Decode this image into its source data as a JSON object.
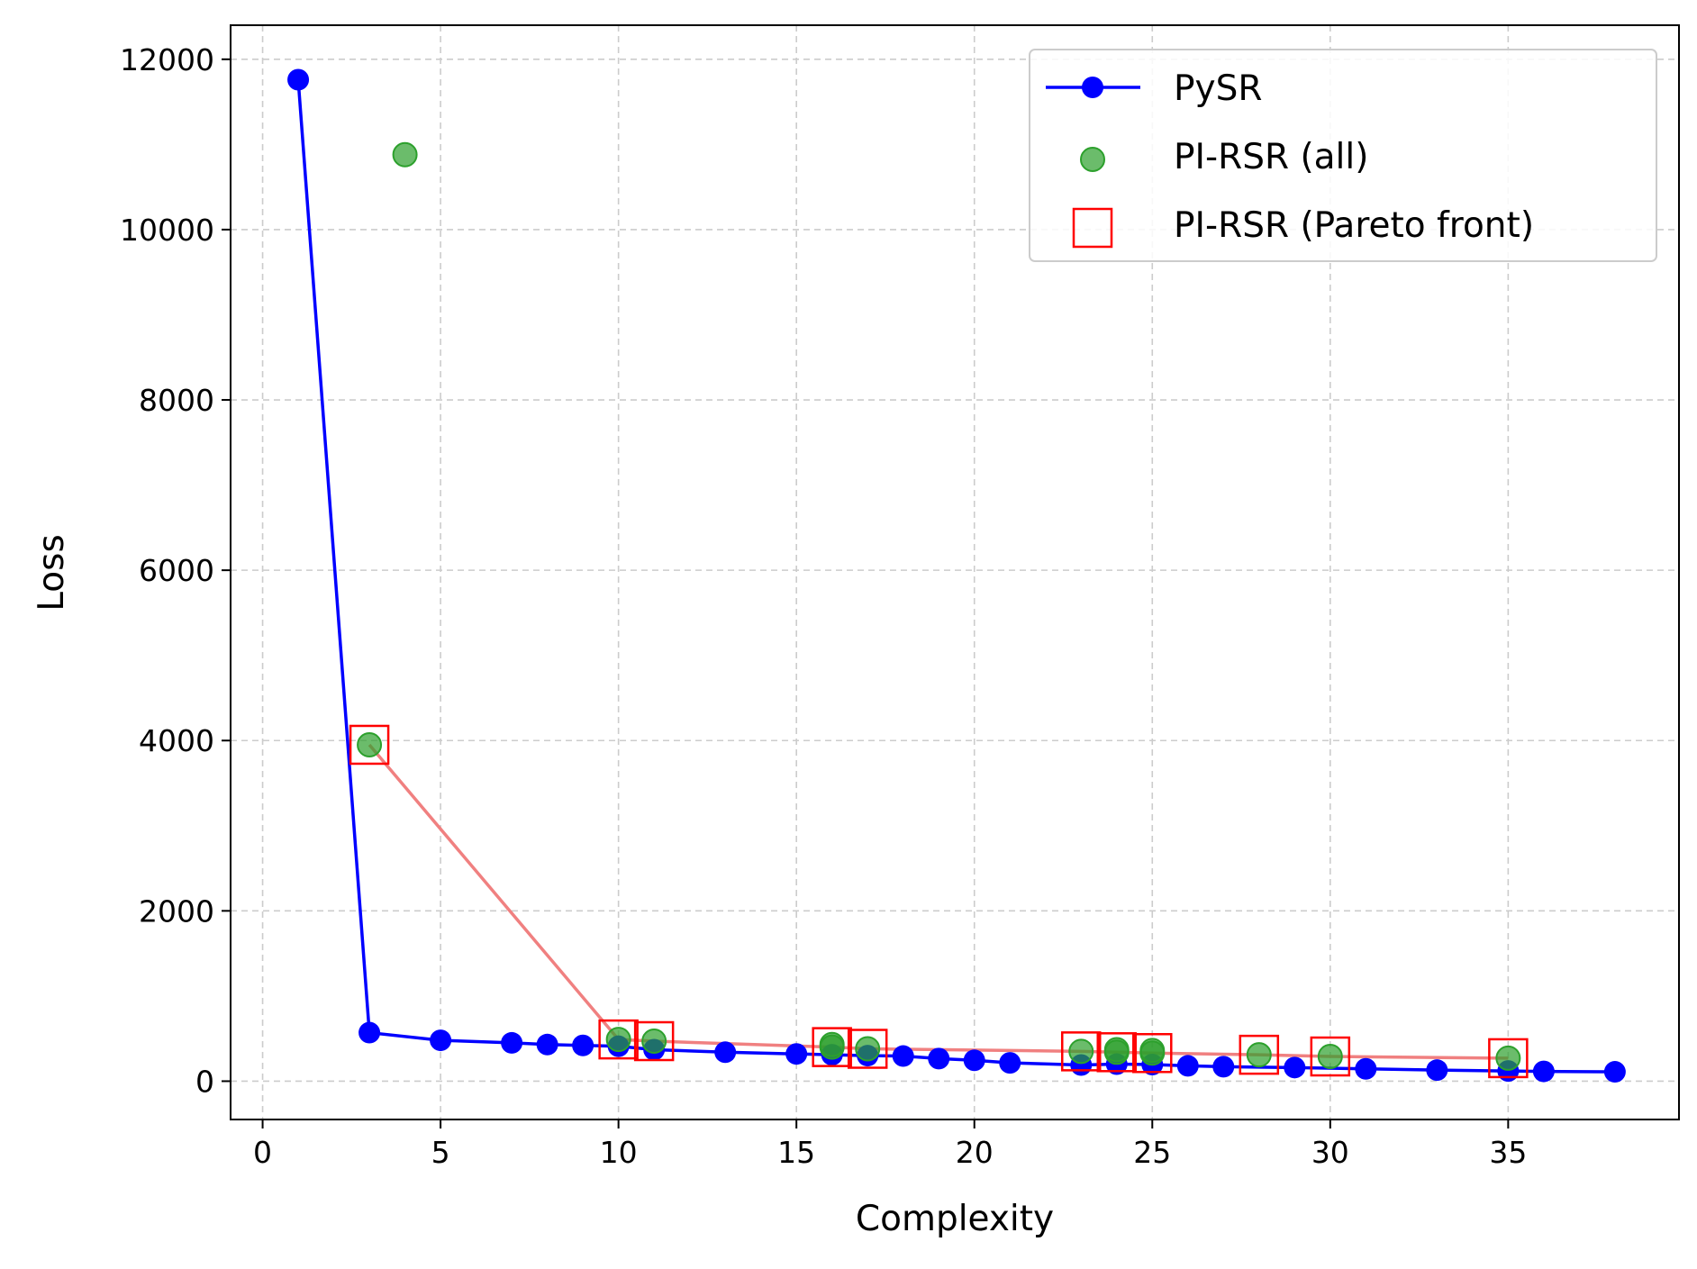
{
  "chart_data": {
    "type": "line",
    "xlabel": "Complexity",
    "ylabel": "Loss",
    "xlim": [
      -0.9,
      39.8
    ],
    "ylim": [
      -450,
      12400
    ],
    "xticks": [
      0,
      5,
      10,
      15,
      20,
      25,
      30,
      35
    ],
    "yticks": [
      0,
      2000,
      4000,
      6000,
      8000,
      10000,
      12000
    ],
    "grid": true,
    "legend": "top-right",
    "series": [
      {
        "name": "PySR",
        "kind": "line-with-markers",
        "color": "#0000ff",
        "x": [
          1,
          3,
          5,
          7,
          8,
          9,
          10,
          11,
          13,
          15,
          16,
          17,
          18,
          19,
          20,
          21,
          23,
          24,
          25,
          26,
          27,
          29,
          31,
          33,
          35,
          36,
          38
        ],
        "y": [
          11760,
          570,
          480,
          450,
          430,
          420,
          410,
          370,
          340,
          320,
          310,
          300,
          295,
          265,
          245,
          215,
          190,
          200,
          195,
          180,
          170,
          160,
          145,
          130,
          120,
          115,
          110
        ]
      },
      {
        "name": "PI-RSR (all)",
        "kind": "scatter",
        "color": "#2ca02c",
        "x": [
          3,
          4,
          10,
          11,
          16,
          16,
          17,
          23,
          24,
          24,
          25,
          25,
          28,
          30,
          35
        ],
        "y": [
          3950,
          10880,
          490,
          470,
          430,
          400,
          380,
          350,
          370,
          340,
          360,
          330,
          310,
          290,
          270
        ]
      },
      {
        "name": "PI-RSR (Pareto front)",
        "kind": "squares-with-line",
        "color": "#ff0000",
        "line_color": "#f08080",
        "x": [
          3,
          10,
          11,
          16,
          17,
          23,
          24,
          25,
          28,
          30,
          35
        ],
        "y": [
          3950,
          490,
          470,
          400,
          380,
          350,
          340,
          330,
          310,
          290,
          270
        ]
      }
    ]
  }
}
